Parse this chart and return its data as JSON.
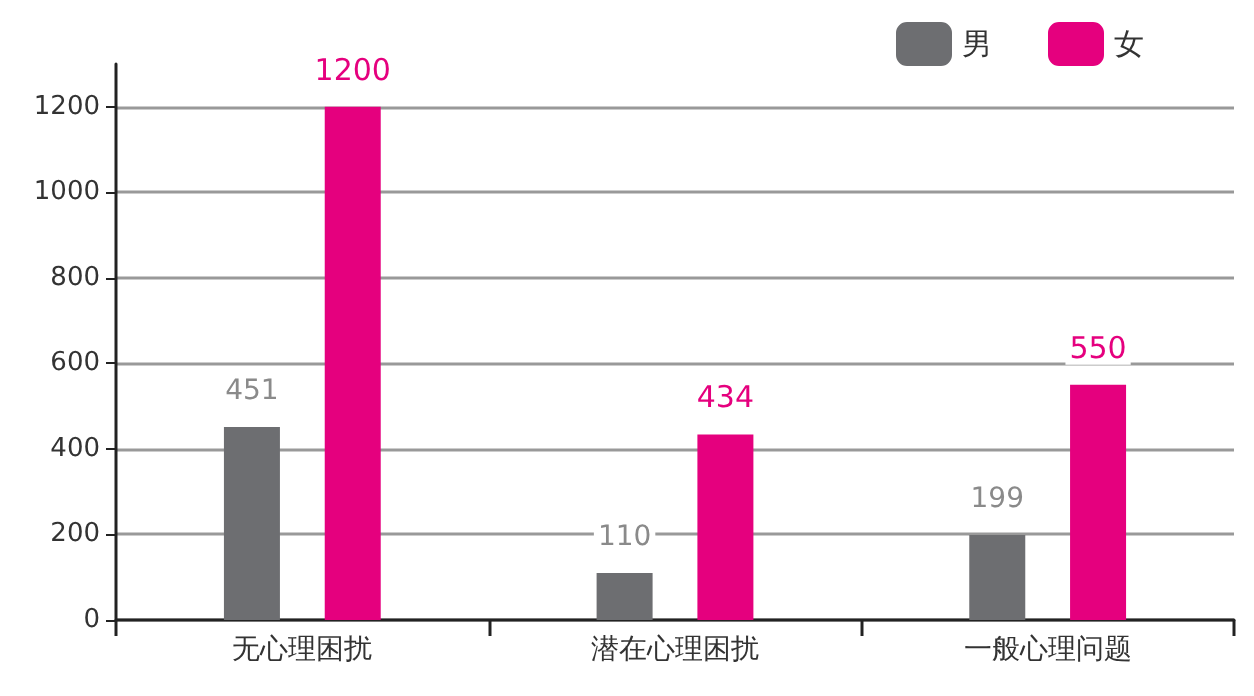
{
  "chart_data": {
    "type": "bar",
    "categories": [
      "无心理困扰",
      "潜在心理困扰",
      "一般心理问题"
    ],
    "series": [
      {
        "name": "男",
        "color": "#6d6e71",
        "values": [
          451,
          110,
          199
        ]
      },
      {
        "name": "女",
        "color": "#e5007e",
        "values": [
          1200,
          434,
          550
        ]
      }
    ],
    "ylim": [
      0,
      1300
    ],
    "yticks": [
      0,
      200,
      400,
      600,
      800,
      1000,
      1200
    ],
    "grid": "y",
    "legend": "top right",
    "data_labels": true
  }
}
